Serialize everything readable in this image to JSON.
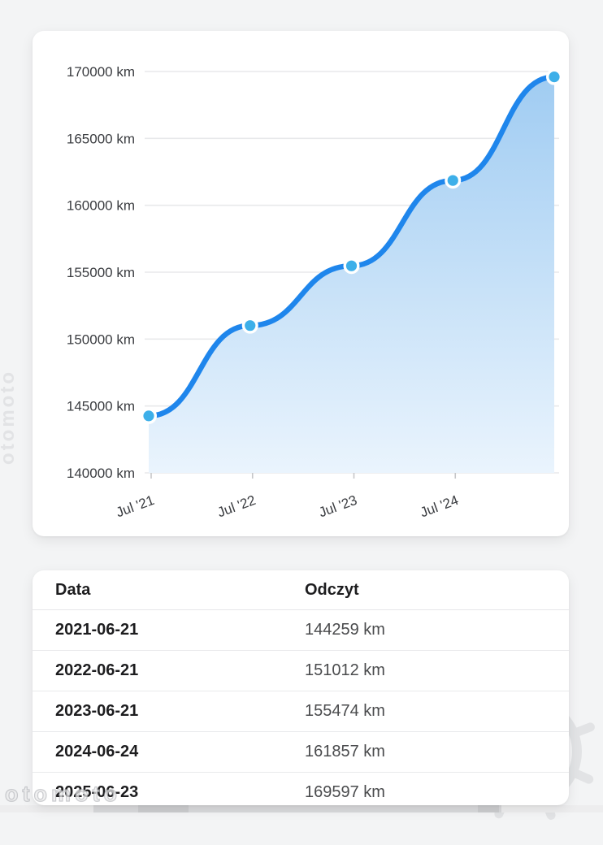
{
  "chart_data": {
    "type": "area",
    "title": "",
    "xlabel": "",
    "ylabel": "",
    "x": [
      "2021-06-21",
      "2022-06-21",
      "2023-06-21",
      "2024-06-24",
      "2025-06-23"
    ],
    "values": [
      144259,
      151012,
      155474,
      161857,
      169597
    ],
    "unit": "km",
    "ylim": [
      140000,
      170000
    ],
    "y_tick_step": 5000,
    "y_tick_labels": [
      "170000 km",
      "165000 km",
      "160000 km",
      "155000 km",
      "150000 km",
      "145000 km",
      "140000 km"
    ],
    "x_tick_labels": [
      "Jul '21",
      "Jul '22",
      "Jul '23",
      "Jul '24"
    ],
    "grid": true,
    "legend": "none",
    "colors": {
      "line": "#1f86ec",
      "point_fill": "#3dafe9",
      "point_border": "#ffffff",
      "area_top": "#a0ccf2",
      "area_bottom": "#eaf4fd",
      "grid_line": "#e8e9eb",
      "tick_mark": "#c6c7c9",
      "axis_text": "#3a3c40"
    }
  },
  "table": {
    "headers": [
      "Data",
      "Odczyt"
    ],
    "rows": [
      {
        "date": "2021-06-21",
        "reading": "144259 km"
      },
      {
        "date": "2022-06-21",
        "reading": "151012 km"
      },
      {
        "date": "2023-06-21",
        "reading": "155474 km"
      },
      {
        "date": "2024-06-24",
        "reading": "161857 km"
      },
      {
        "date": "2025-06-23",
        "reading": "169597 km"
      }
    ]
  },
  "watermark": {
    "text": "otomoto"
  }
}
